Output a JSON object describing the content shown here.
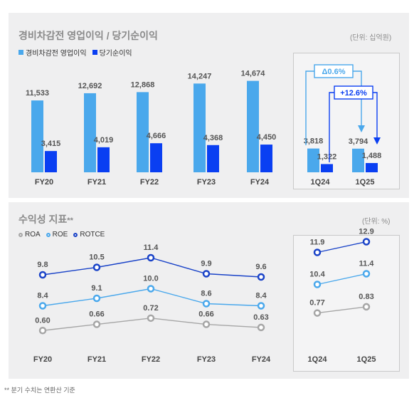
{
  "top": {
    "title": "경비차감전 영업이익 / 당기순이익",
    "unit": "(단위: 십억원)",
    "legend": [
      {
        "label": "경비차감전 영업이익",
        "color": "#4aa8ec"
      },
      {
        "label": "당기순이익",
        "color": "#0a3ff2"
      }
    ]
  },
  "bottom": {
    "title": "수익성 지표",
    "title_mark": "**",
    "unit": "(단위: %)",
    "legend": [
      {
        "label": "ROA",
        "color": "#a6a6a6"
      },
      {
        "label": "ROE",
        "color": "#4aa8ec"
      },
      {
        "label": "ROTCE",
        "color": "#1a43c8"
      }
    ]
  },
  "footnote": "** 분기 수치는 연환산 기준",
  "chart_data": [
    {
      "type": "bar",
      "categories": [
        "FY20",
        "FY21",
        "FY22",
        "FY23",
        "FY24"
      ],
      "series": [
        {
          "name": "경비차감전 영업이익",
          "values": [
            "11,533",
            "12,692",
            "12,868",
            "14,247",
            "14,674"
          ],
          "color": "#4aa8ec"
        },
        {
          "name": "당기순이익",
          "values": [
            "3,415",
            "4,019",
            "4,666",
            "4,368",
            "4,450"
          ],
          "color": "#0a3ff2"
        }
      ]
    },
    {
      "type": "bar",
      "categories": [
        "1Q24",
        "1Q25"
      ],
      "series": [
        {
          "name": "경비차감전 영업이익",
          "values": [
            "3,818",
            "3,794"
          ],
          "color": "#4aa8ec"
        },
        {
          "name": "당기순이익",
          "values": [
            "1,322",
            "1,488"
          ],
          "color": "#0a3ff2"
        }
      ],
      "annotations": [
        {
          "label": "Δ0.6%",
          "series": "경비차감전 영업이익"
        },
        {
          "label": "+12.6%",
          "series": "당기순이익"
        }
      ]
    },
    {
      "type": "line",
      "categories": [
        "FY20",
        "FY21",
        "FY22",
        "FY23",
        "FY24"
      ],
      "series": [
        {
          "name": "ROTCE",
          "values": [
            "9.8",
            "10.5",
            "11.4",
            "9.9",
            "9.6"
          ],
          "color": "#1a43c8"
        },
        {
          "name": "ROE",
          "values": [
            "8.4",
            "9.1",
            "10.0",
            "8.6",
            "8.4"
          ],
          "color": "#4aa8ec"
        },
        {
          "name": "ROA",
          "values": [
            "0.60",
            "0.66",
            "0.72",
            "0.66",
            "0.63"
          ],
          "color": "#a6a6a6"
        }
      ]
    },
    {
      "type": "line",
      "categories": [
        "1Q24",
        "1Q25"
      ],
      "series": [
        {
          "name": "ROTCE",
          "values": [
            "11.9",
            "12.9"
          ],
          "color": "#1a43c8"
        },
        {
          "name": "ROE",
          "values": [
            "10.4",
            "11.4"
          ],
          "color": "#4aa8ec"
        },
        {
          "name": "ROA",
          "values": [
            "0.77",
            "0.83"
          ],
          "color": "#a6a6a6"
        }
      ]
    }
  ]
}
